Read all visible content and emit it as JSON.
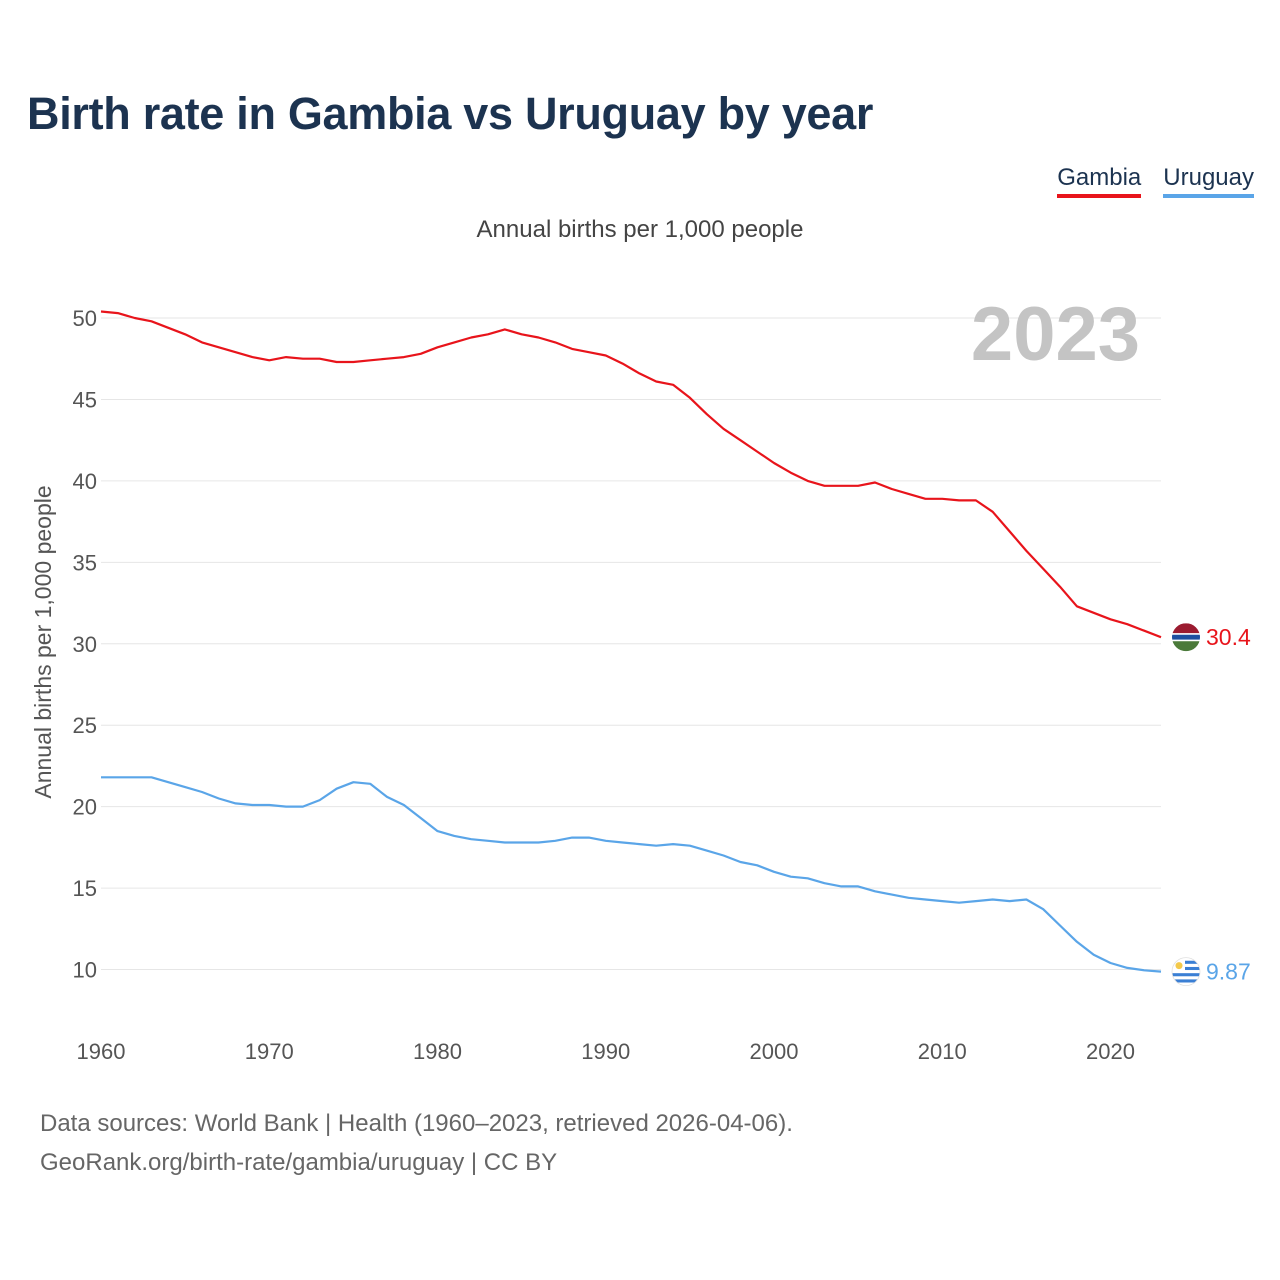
{
  "colors": {
    "title": "#1c3350",
    "gambia": "#e8141b",
    "uruguay": "#5aa5e8",
    "grid": "#e6e6e6",
    "year_watermark": "#c4c4c4",
    "tick": "#555555"
  },
  "chart_data": {
    "type": "line",
    "title": "Birth rate in Gambia vs Uruguay by year",
    "subtitle": "Annual births per 1,000 people",
    "ylabel": "Annual births per 1,000 people",
    "xlabel": "",
    "xlim": [
      1960,
      2023
    ],
    "ylim": [
      7.5,
      51
    ],
    "x_ticks": [
      1960,
      1970,
      1980,
      1990,
      2000,
      2010,
      2020
    ],
    "y_ticks": [
      10,
      15,
      20,
      25,
      30,
      35,
      40,
      45,
      50
    ],
    "current_year": "2023",
    "x": [
      1960,
      1961,
      1962,
      1963,
      1964,
      1965,
      1966,
      1967,
      1968,
      1969,
      1970,
      1971,
      1972,
      1973,
      1974,
      1975,
      1976,
      1977,
      1978,
      1979,
      1980,
      1981,
      1982,
      1983,
      1984,
      1985,
      1986,
      1987,
      1988,
      1989,
      1990,
      1991,
      1992,
      1993,
      1994,
      1995,
      1996,
      1997,
      1998,
      1999,
      2000,
      2001,
      2002,
      2003,
      2004,
      2005,
      2006,
      2007,
      2008,
      2009,
      2010,
      2011,
      2012,
      2013,
      2014,
      2015,
      2016,
      2017,
      2018,
      2019,
      2020,
      2021,
      2022,
      2023
    ],
    "series": [
      {
        "name": "Gambia",
        "end_label": "30.4",
        "values": [
          50.4,
          50.3,
          50.0,
          49.8,
          49.4,
          49.0,
          48.5,
          48.2,
          47.9,
          47.6,
          47.4,
          47.6,
          47.5,
          47.5,
          47.3,
          47.3,
          47.4,
          47.5,
          47.6,
          47.8,
          48.2,
          48.5,
          48.8,
          49.0,
          49.3,
          49.0,
          48.8,
          48.5,
          48.1,
          47.9,
          47.7,
          47.2,
          46.6,
          46.1,
          45.9,
          45.1,
          44.1,
          43.2,
          42.5,
          41.8,
          41.1,
          40.5,
          40.0,
          39.7,
          39.7,
          39.7,
          39.9,
          39.5,
          39.2,
          38.9,
          38.9,
          38.8,
          38.8,
          38.1,
          36.9,
          35.7,
          34.6,
          33.5,
          32.3,
          31.9,
          31.5,
          31.2,
          30.8,
          30.4
        ]
      },
      {
        "name": "Uruguay",
        "end_label": "9.87",
        "values": [
          21.8,
          21.8,
          21.8,
          21.8,
          21.5,
          21.2,
          20.9,
          20.5,
          20.2,
          20.1,
          20.1,
          20.0,
          20.0,
          20.4,
          21.1,
          21.5,
          21.4,
          20.6,
          20.1,
          19.3,
          18.5,
          18.2,
          18.0,
          17.9,
          17.8,
          17.8,
          17.8,
          17.9,
          18.1,
          18.1,
          17.9,
          17.8,
          17.7,
          17.6,
          17.7,
          17.6,
          17.3,
          17.0,
          16.6,
          16.4,
          16.0,
          15.7,
          15.6,
          15.3,
          15.1,
          15.1,
          14.8,
          14.6,
          14.4,
          14.3,
          14.2,
          14.1,
          14.2,
          14.3,
          14.2,
          14.3,
          13.7,
          12.7,
          11.7,
          10.9,
          10.4,
          10.1,
          9.95,
          9.87
        ]
      }
    ]
  },
  "footer": {
    "line1": "Data sources: World Bank | Health (1960–2023, retrieved 2026-04-06).",
    "line2": "GeoRank.org/birth-rate/gambia/uruguay | CC BY"
  }
}
